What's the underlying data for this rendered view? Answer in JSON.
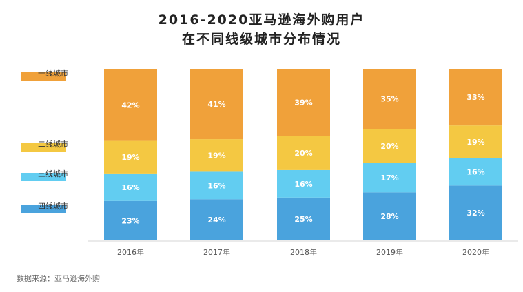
{
  "title": {
    "line1": "2016-2020亚马逊海外购用户",
    "line2": "在不同线级城市分布情况"
  },
  "source": "数据来源：亚马逊海外购",
  "chart_data": {
    "type": "bar",
    "stacked": true,
    "percent_stacked": true,
    "categories": [
      "2016年",
      "2017年",
      "2018年",
      "2019年",
      "2020年"
    ],
    "series": [
      {
        "name": "四线城市",
        "values": [
          23,
          24,
          25,
          28,
          32
        ],
        "labels": [
          "23%",
          "24%",
          "25%",
          "28%",
          "32%"
        ],
        "color": "#4aa3dd"
      },
      {
        "name": "三线城市",
        "values": [
          16,
          16,
          16,
          17,
          16
        ],
        "labels": [
          "16%",
          "16%",
          "16%",
          "17%",
          "16%"
        ],
        "color": "#62cdf1"
      },
      {
        "name": "二线城市",
        "values": [
          19,
          19,
          20,
          20,
          19
        ],
        "labels": [
          "19%",
          "19%",
          "20%",
          "20%",
          "19%"
        ],
        "color": "#f4c842"
      },
      {
        "name": "一线城市",
        "values": [
          42,
          41,
          39,
          35,
          33
        ],
        "labels": [
          "42%",
          "41%",
          "39%",
          "35%",
          "33%"
        ],
        "color": "#f0a13a"
      }
    ],
    "ylim": [
      0,
      100
    ],
    "grid": false,
    "legend_position": "left"
  }
}
